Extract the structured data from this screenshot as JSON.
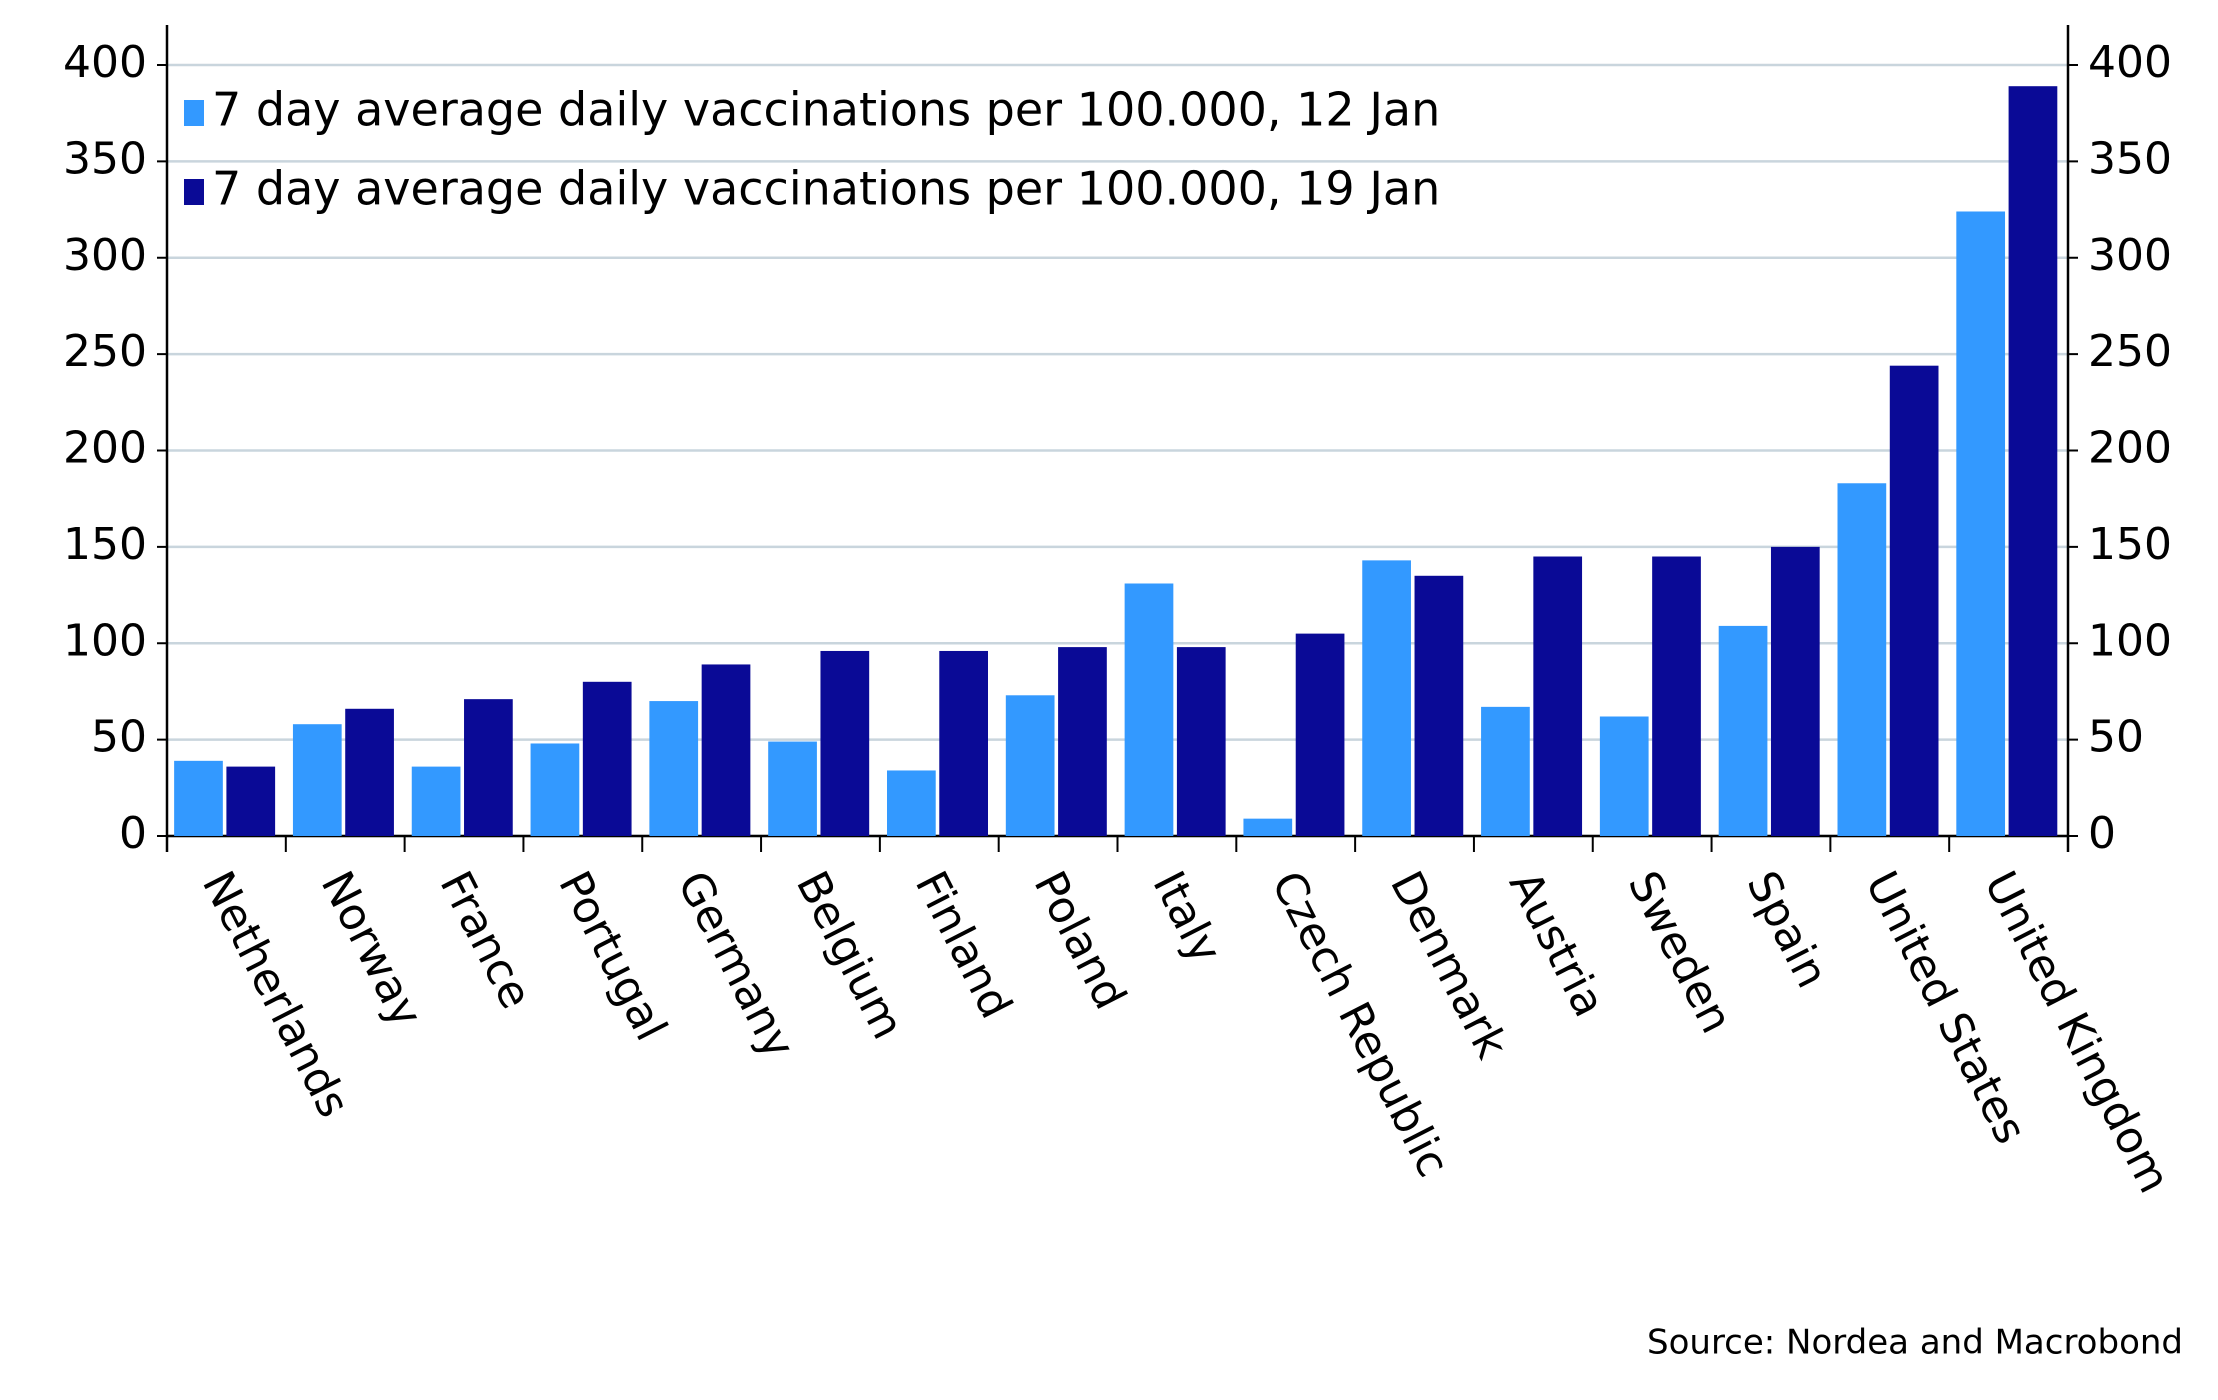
{
  "chart_data": {
    "type": "bar",
    "categories": [
      "Netherlands",
      "Norway",
      "France",
      "Portugal",
      "Germany",
      "Belgium",
      "Finland",
      "Poland",
      "Italy",
      "Czech Republic",
      "Denmark",
      "Austria",
      "Sweden",
      "Spain",
      "United States",
      "United Kingdom"
    ],
    "series": [
      {
        "name": "7 day average daily vaccinations per 100.000, 12 Jan",
        "color": "#3399ff",
        "values": [
          39,
          58,
          36,
          48,
          70,
          49,
          34,
          73,
          131,
          9,
          143,
          67,
          62,
          109,
          183,
          324
        ]
      },
      {
        "name": "7 day average daily vaccinations per 100.000, 19 Jan",
        "color": "#0a0a96",
        "values": [
          36,
          66,
          71,
          80,
          89,
          96,
          96,
          98,
          98,
          105,
          135,
          145,
          145,
          150,
          244,
          389
        ]
      }
    ],
    "ylim": [
      0,
      400
    ],
    "yticks": [
      0,
      50,
      100,
      150,
      200,
      250,
      300,
      350,
      400
    ],
    "y2lim": [
      0,
      400
    ],
    "y2ticks": [
      0,
      50,
      100,
      150,
      200,
      250,
      300,
      350,
      400
    ],
    "grid": true,
    "legend": "top-left",
    "source": "Source: Nordea and Macrobond"
  }
}
